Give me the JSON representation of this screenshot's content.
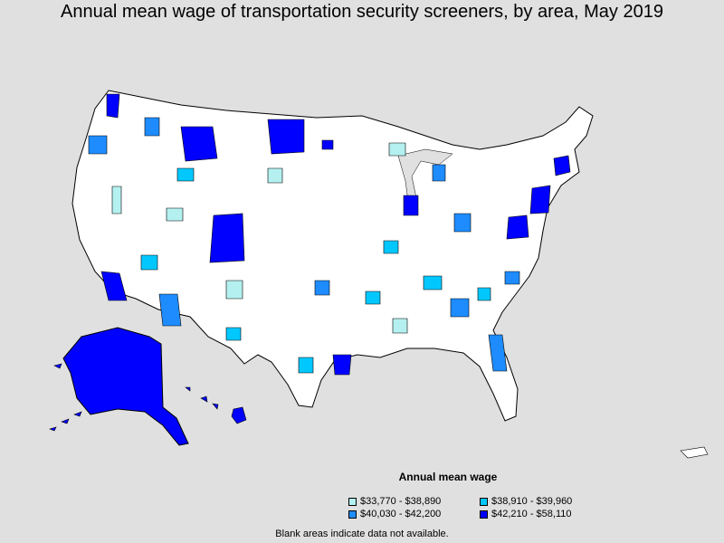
{
  "title": "Annual mean wage of transportation security screeners, by area, May 2019",
  "legend": {
    "title": "Annual mean wage",
    "items": [
      {
        "label": "$33,770 - $38,890",
        "color": "#b4f0f0"
      },
      {
        "label": "$38,910 - $39,960",
        "color": "#00c8ff"
      },
      {
        "label": "$40,030 - $42,200",
        "color": "#1e8cff"
      },
      {
        "label": "$42,210 - $58,110",
        "color": "#0000ff"
      }
    ]
  },
  "note": "Blank areas indicate data not available.",
  "colors": {
    "background": "#e0e0e0",
    "land": "#ffffff",
    "border": "#000000"
  }
}
